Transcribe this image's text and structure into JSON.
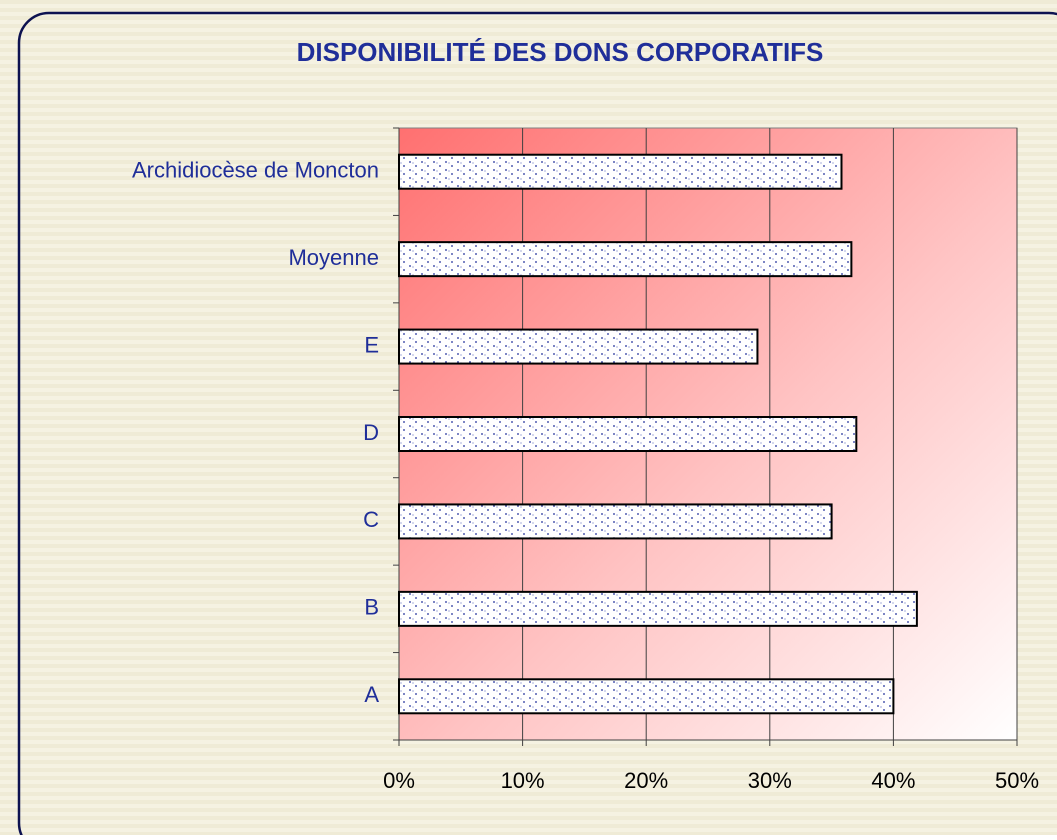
{
  "chart_data": {
    "type": "bar",
    "orientation": "horizontal",
    "title": "DISPONIBILITÉ DES DONS CORPORATIFS",
    "categories": [
      "Archidiocèse de Moncton",
      "Moyenne",
      "E",
      "D",
      "C",
      "B",
      "A"
    ],
    "values": [
      35.8,
      36.6,
      29,
      37,
      35,
      41.9,
      40
    ],
    "color": "#1f2e99",
    "xlim": [
      0,
      50
    ],
    "xticks": [
      {
        "value": 0,
        "label": "0%"
      },
      {
        "value": 10,
        "label": "10%"
      },
      {
        "value": 20,
        "label": "20%"
      },
      {
        "value": 30,
        "label": "30%"
      },
      {
        "value": 40,
        "label": "40%"
      },
      {
        "value": 50,
        "label": "50%"
      }
    ],
    "grid": true
  }
}
